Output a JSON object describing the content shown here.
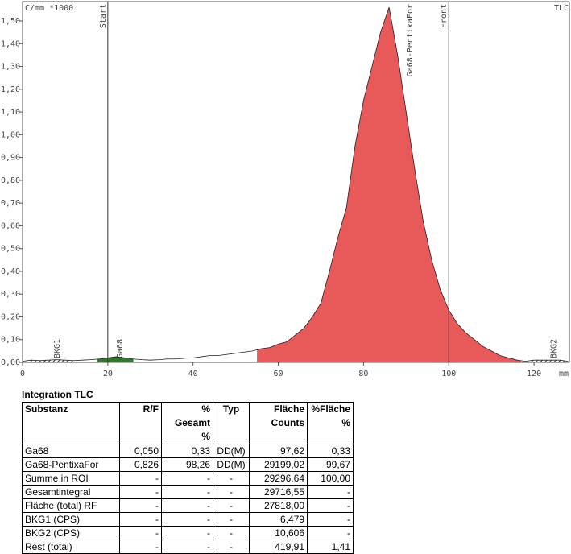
{
  "chart_data": {
    "type": "line",
    "y_label": "C/mm *1000",
    "x_label": "mm",
    "corner_label": "TLC",
    "xlim": [
      0,
      128.3
    ],
    "ylim": [
      0,
      1.585
    ],
    "xticks": [
      0,
      20,
      40,
      60,
      80,
      100,
      120
    ],
    "yticks": [
      {
        "value": 0,
        "label": "0,00"
      },
      {
        "value": 0.1,
        "label": "0,10"
      },
      {
        "value": 0.2,
        "label": "0,20"
      },
      {
        "value": 0.3,
        "label": "0,30"
      },
      {
        "value": 0.4,
        "label": "0,40"
      },
      {
        "value": 0.5,
        "label": "0,50"
      },
      {
        "value": 0.6,
        "label": "0,60"
      },
      {
        "value": 0.7,
        "label": "0,70"
      },
      {
        "value": 0.8,
        "label": "0,80"
      },
      {
        "value": 0.9,
        "label": "0,90"
      },
      {
        "value": 1.0,
        "label": "1,00"
      },
      {
        "value": 1.1,
        "label": "1,10"
      },
      {
        "value": 1.2,
        "label": "1,20"
      },
      {
        "value": 1.3,
        "label": "1,30"
      },
      {
        "value": 1.4,
        "label": "1,40"
      },
      {
        "value": 1.5,
        "label": "1,50"
      }
    ],
    "x": [
      0,
      2,
      4,
      6,
      8,
      10,
      12,
      14,
      16,
      18,
      20,
      22,
      24,
      26,
      28,
      30,
      32,
      34,
      36,
      38,
      40,
      42,
      44,
      46,
      48,
      50,
      52,
      54,
      56,
      58,
      60,
      62,
      64,
      66,
      68,
      70,
      72,
      74,
      76,
      78,
      80,
      82,
      84,
      86,
      88,
      90,
      92,
      94,
      96,
      98,
      100,
      102,
      104,
      106,
      108,
      110,
      112,
      114,
      116,
      118,
      120,
      122,
      124,
      126,
      128
    ],
    "series": [
      {
        "color": "#222222",
        "values": [
          0.005,
          0.01,
          0.008,
          0.01,
          0.012,
          0.01,
          0.008,
          0.01,
          0.012,
          0.015,
          0.02,
          0.025,
          0.02,
          0.015,
          0.012,
          0.01,
          0.012,
          0.015,
          0.015,
          0.018,
          0.02,
          0.025,
          0.03,
          0.03,
          0.035,
          0.04,
          0.045,
          0.05,
          0.06,
          0.065,
          0.08,
          0.09,
          0.12,
          0.15,
          0.2,
          0.26,
          0.4,
          0.55,
          0.68,
          0.95,
          1.15,
          1.3,
          1.45,
          1.56,
          1.35,
          1.1,
          0.85,
          0.62,
          0.45,
          0.32,
          0.23,
          0.17,
          0.13,
          0.1,
          0.07,
          0.05,
          0.03,
          0.02,
          0.01,
          0.005,
          0.01,
          0.01,
          0.01,
          0.01,
          0.005
        ]
      }
    ],
    "regions": [
      {
        "name": "BKG1",
        "x_range": [
          2,
          12
        ],
        "color": "hatch"
      },
      {
        "name": "Ga68",
        "x_range": [
          17.5,
          26
        ],
        "color": "#2f7a2a"
      },
      {
        "name": "Ga68-PentixaFor",
        "x_range": [
          55,
          117
        ],
        "color": "#e85a5a"
      },
      {
        "name": "BKG2",
        "x_range": [
          119,
          128
        ],
        "color": "hatch"
      }
    ],
    "markers": [
      {
        "label": "Start",
        "x": 20
      },
      {
        "label": "Front",
        "x": 100
      }
    ]
  },
  "table": {
    "title": "Integration TLC",
    "header": [
      [
        "Substanz",
        ""
      ],
      [
        "R/F",
        ""
      ],
      [
        "% Gesamt",
        "%"
      ],
      [
        "Typ",
        ""
      ],
      [
        "Fläche",
        "Counts"
      ],
      [
        "%Fläche",
        "%"
      ]
    ],
    "rows": [
      [
        "Ga68",
        "0,050",
        "0,33",
        "DD(M)",
        "97,62",
        "0,33"
      ],
      [
        "Ga68-PentixaFor",
        "0,826",
        "98,26",
        "DD(M)",
        "29199,02",
        "99,67"
      ],
      [
        "Summe in ROI",
        "-",
        "-",
        "-",
        "29296,64",
        "100,00"
      ],
      [
        "Gesamtintegral",
        "-",
        "-",
        "-",
        "29716,55",
        "-"
      ],
      [
        "Fläche (total) RF",
        "-",
        "-",
        "-",
        "27818,00",
        "-"
      ],
      [
        "BKG1 (CPS)",
        "-",
        "-",
        "-",
        "6,479",
        "-"
      ],
      [
        "BKG2 (CPS)",
        "-",
        "-",
        "-",
        "10,606",
        "-"
      ],
      [
        "Rest (total)",
        "-",
        "-",
        "-",
        "419,91",
        "1,41"
      ]
    ]
  }
}
